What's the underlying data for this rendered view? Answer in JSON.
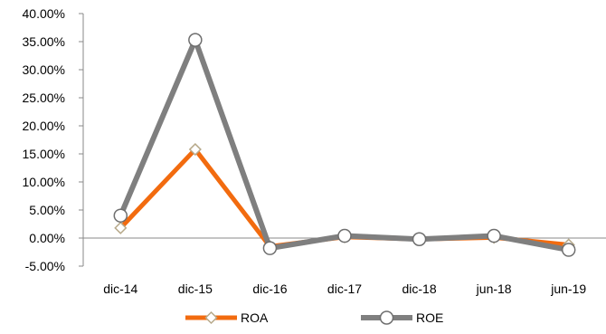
{
  "chart_data": {
    "type": "line",
    "categories": [
      "dic-14",
      "dic-15",
      "dic-16",
      "dic-17",
      "dic-18",
      "jun-18",
      "jun-19"
    ],
    "series": [
      {
        "name": "ROA",
        "values": [
          1.8,
          15.8,
          -1.5,
          0.2,
          -0.2,
          0.1,
          -1.2
        ],
        "color": "#F26B0F",
        "marker": "diamond"
      },
      {
        "name": "ROE",
        "values": [
          4.0,
          35.3,
          -1.8,
          0.4,
          -0.2,
          0.4,
          -2.1
        ],
        "color": "#7F7F7F",
        "marker": "circle"
      }
    ],
    "y_ticks": [
      "-5.00%",
      "0.00%",
      "5.00%",
      "10.00%",
      "15.00%",
      "20.00%",
      "25.00%",
      "30.00%",
      "35.00%",
      "40.00%"
    ],
    "ylim": [
      -5,
      40
    ],
    "title": "",
    "xlabel": "",
    "ylabel": "",
    "legend_position": "bottom",
    "grid": false
  }
}
